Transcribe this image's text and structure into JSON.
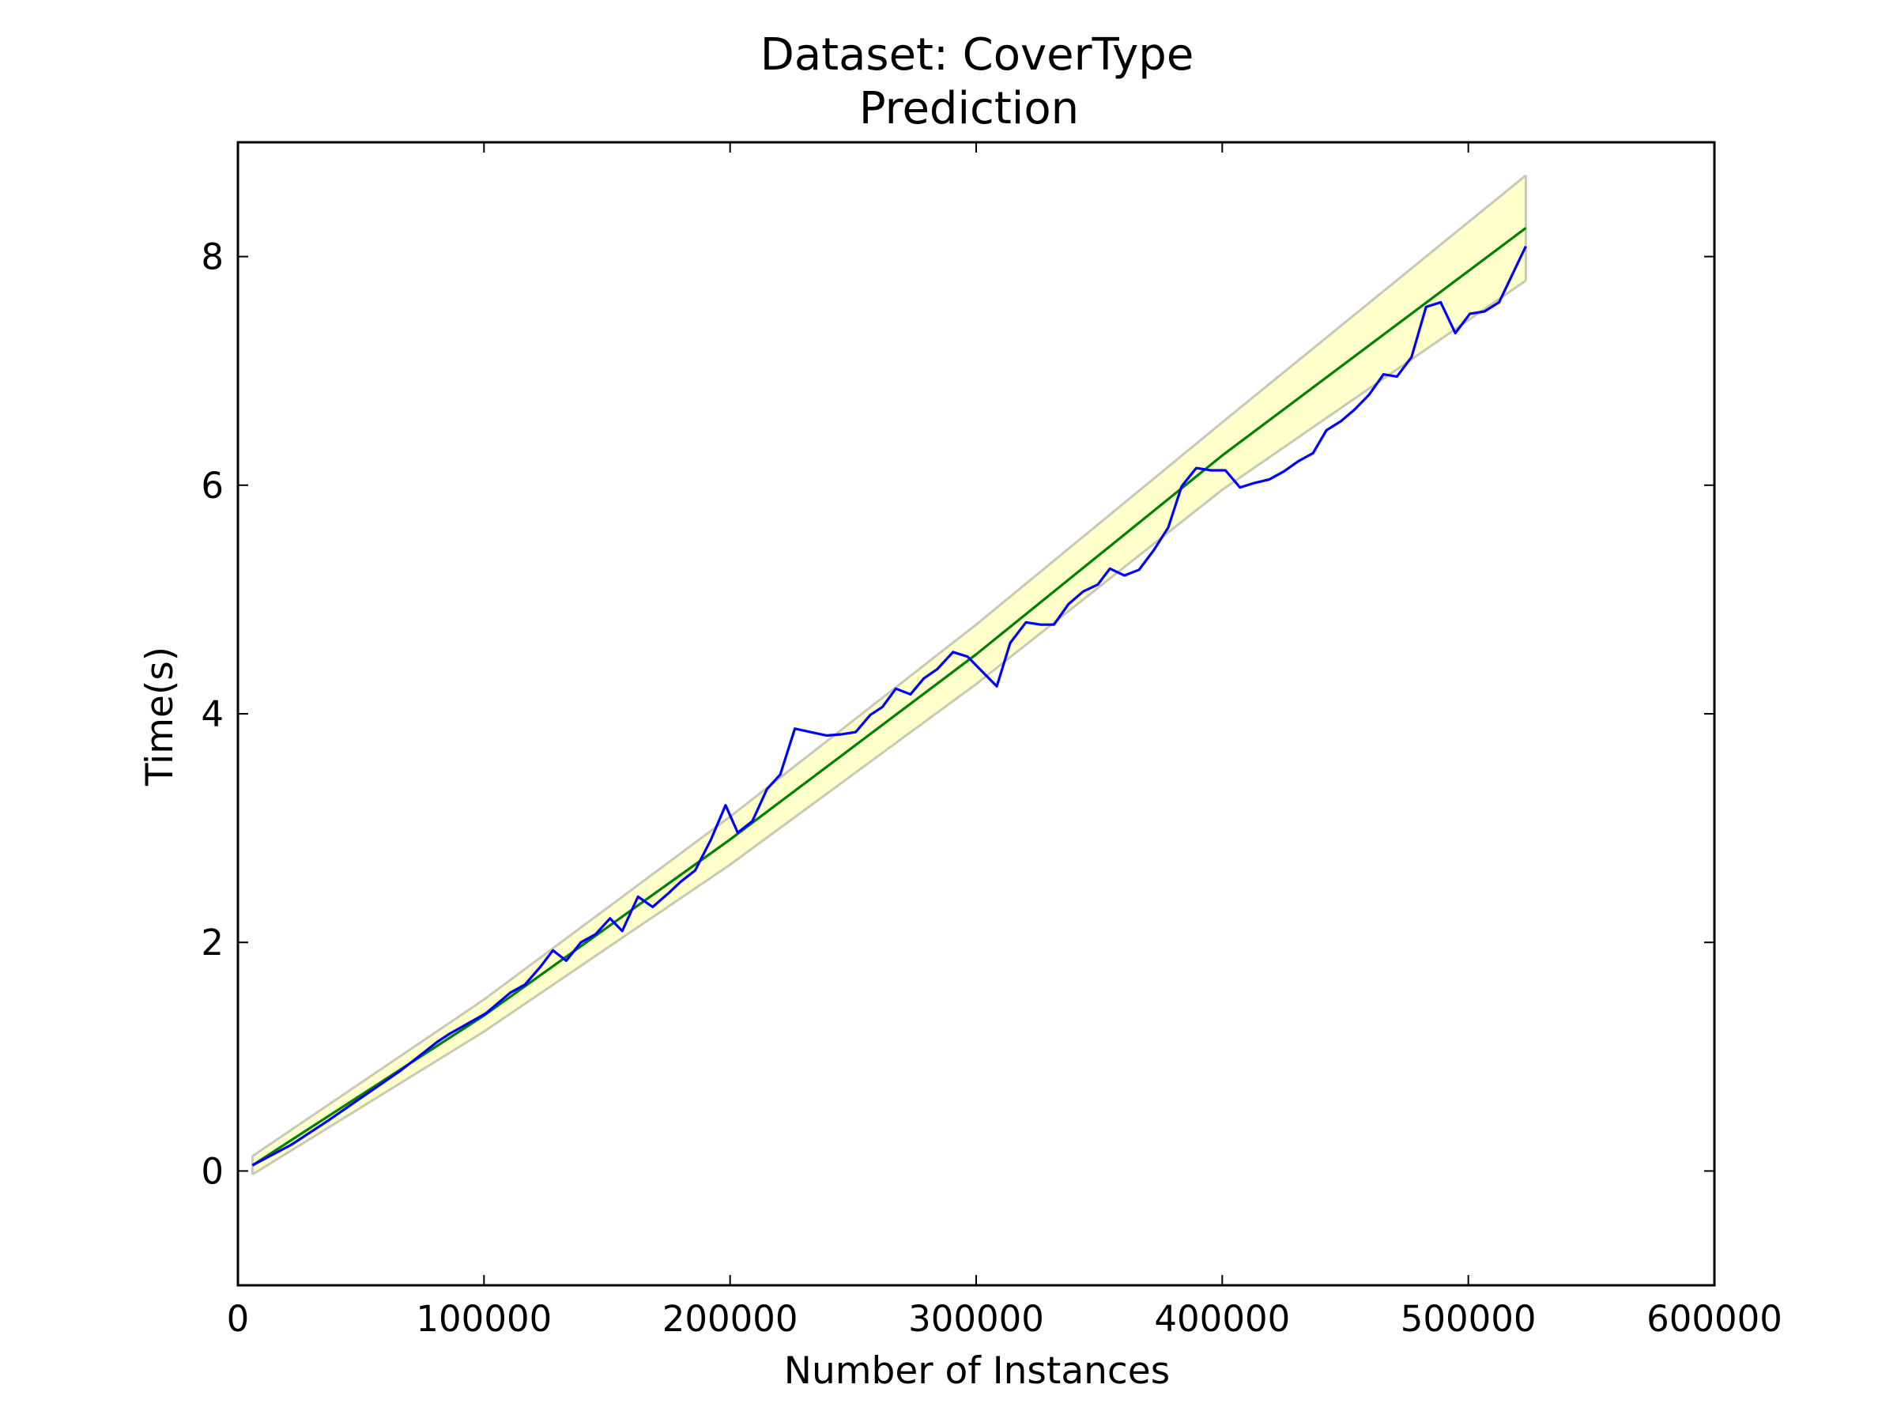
{
  "chart_data": {
    "type": "line",
    "title": "Dataset: CoverType",
    "subtitle": "Prediction",
    "x_label": "Number of Instances",
    "y_label": "Time(s)",
    "xlim": [
      0,
      600000
    ],
    "xticks": [
      0,
      100000,
      200000,
      300000,
      400000,
      500000,
      600000
    ],
    "ylim": [
      -1,
      9
    ],
    "yticks": [
      0,
      2,
      4,
      6,
      8
    ],
    "band": {
      "color": "#ffffcc",
      "edge_color": "#c8c8b4",
      "x": [
        5900,
        100000,
        200000,
        300000,
        400000,
        523360
      ],
      "upper": [
        0.13,
        1.5,
        3.1,
        4.78,
        6.55,
        8.71
      ],
      "lower": [
        -0.03,
        1.22,
        2.68,
        4.26,
        5.96,
        7.79
      ]
    },
    "series": [
      {
        "color": "#008000",
        "x": [
          5900,
          100000,
          200000,
          300000,
          400000,
          523360
        ],
        "values": [
          0.05,
          1.36,
          2.9,
          4.52,
          6.26,
          8.25
        ]
      },
      {
        "color": "#0000ff",
        "x": [
          5900,
          21750,
          36570,
          51400,
          66220,
          81050,
          85990,
          100820,
          110700,
          116630,
          123060,
          128000,
          133430,
          139360,
          145290,
          151220,
          156170,
          162590,
          168520,
          174950,
          179890,
          185820,
          192240,
          198170,
          203110,
          209040,
          214970,
          220410,
          226340,
          232770,
          239190,
          245120,
          251050,
          256980,
          261920,
          267360,
          273290,
          278730,
          284160,
          290590,
          296520,
          302450,
          308380,
          313820,
          320240,
          326170,
          331610,
          337540,
          343470,
          349400,
          354340,
          360270,
          366200,
          372130,
          378060,
          383500,
          389430,
          395360,
          401290,
          407220,
          413150,
          419080,
          425010,
          430940,
          436870,
          442310,
          448240,
          453680,
          459610,
          465540,
          470980,
          476910,
          482840,
          488770,
          494700,
          500630,
          506560,
          512490,
          523360
        ],
        "values": [
          0.05,
          0.23,
          0.44,
          0.66,
          0.88,
          1.13,
          1.2,
          1.38,
          1.56,
          1.63,
          1.79,
          1.93,
          1.84,
          2.0,
          2.07,
          2.21,
          2.1,
          2.4,
          2.31,
          2.43,
          2.53,
          2.63,
          2.9,
          3.2,
          2.96,
          3.06,
          3.34,
          3.47,
          3.87,
          3.84,
          3.81,
          3.82,
          3.84,
          3.99,
          4.06,
          4.22,
          4.17,
          4.31,
          4.39,
          4.54,
          4.5,
          4.37,
          4.24,
          4.62,
          4.8,
          4.78,
          4.78,
          4.96,
          5.07,
          5.13,
          5.27,
          5.21,
          5.26,
          5.43,
          5.63,
          5.99,
          6.15,
          6.13,
          6.13,
          5.98,
          6.02,
          6.05,
          6.12,
          6.21,
          6.28,
          6.48,
          6.56,
          6.66,
          6.79,
          6.97,
          6.95,
          7.12,
          7.56,
          7.6,
          7.33,
          7.5,
          7.52,
          7.6,
          8.09
        ]
      }
    ]
  }
}
